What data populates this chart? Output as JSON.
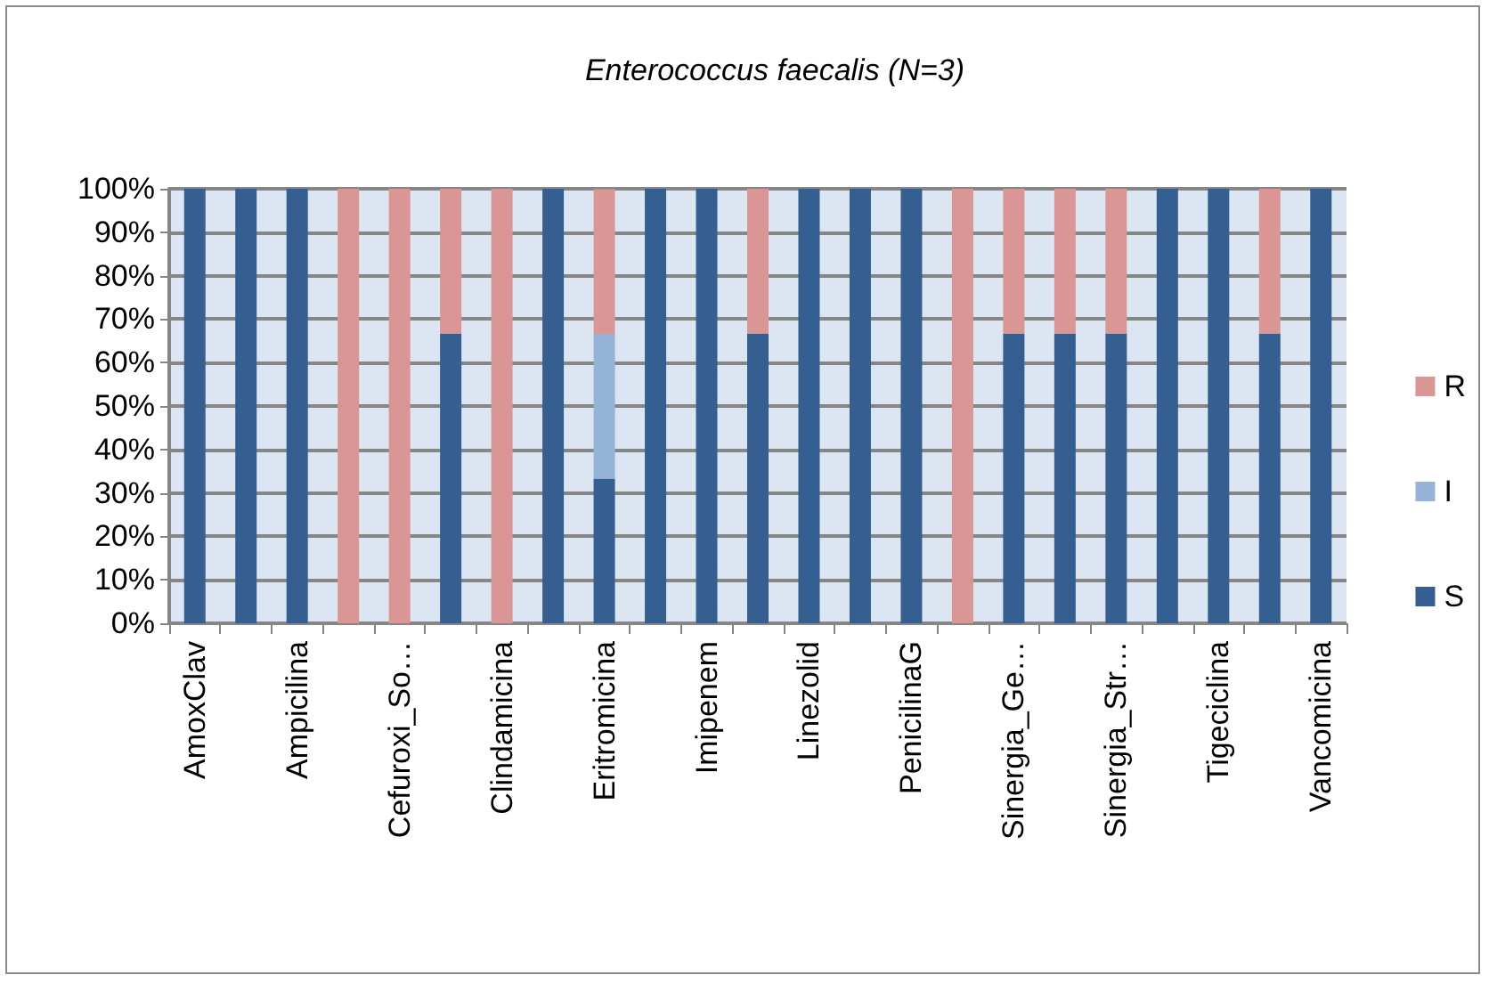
{
  "chart_data": {
    "type": "bar",
    "title": "Enterococcus faecalis (N=3)",
    "stacked": true,
    "categories": [
      "AmoxClav",
      null,
      "Ampicilina",
      null,
      "Cefuroxi_So…",
      null,
      "Clindamicina",
      null,
      "Eritromicina",
      null,
      "Imipenem",
      null,
      "Linezolid",
      null,
      "PenicilinaG",
      null,
      "Sinergia_Ge…",
      null,
      "Sinergia_Str…",
      null,
      "Tigeciclina",
      null,
      "Vancomicina"
    ],
    "series": [
      {
        "name": "S",
        "color": "#355f91",
        "values": [
          100,
          100,
          100,
          0,
          0,
          66.7,
          0,
          100,
          33.3,
          100,
          100,
          66.7,
          100,
          100,
          100,
          0,
          66.7,
          66.7,
          66.7,
          100,
          100,
          66.7,
          100
        ]
      },
      {
        "name": "I",
        "color": "#95b3d7",
        "values": [
          0,
          0,
          0,
          0,
          0,
          0,
          0,
          0,
          33.3,
          0,
          0,
          0,
          0,
          0,
          0,
          0,
          0,
          0,
          0,
          0,
          0,
          0,
          0
        ]
      },
      {
        "name": "R",
        "color": "#d99694",
        "values": [
          0,
          0,
          0,
          100,
          100,
          33.3,
          100,
          0,
          33.3,
          0,
          0,
          33.3,
          0,
          0,
          0,
          100,
          33.3,
          33.3,
          33.3,
          0,
          0,
          33.3,
          0
        ]
      }
    ],
    "ylim": [
      0,
      100
    ],
    "yticks": [
      {
        "value": 0,
        "label": "0%"
      },
      {
        "value": 10,
        "label": "10%"
      },
      {
        "value": 20,
        "label": "20%"
      },
      {
        "value": 30,
        "label": "30%"
      },
      {
        "value": 40,
        "label": "40%"
      },
      {
        "value": 50,
        "label": "50%"
      },
      {
        "value": 60,
        "label": "60%"
      },
      {
        "value": 70,
        "label": "70%"
      },
      {
        "value": 80,
        "label": "80%"
      },
      {
        "value": 90,
        "label": "90%"
      },
      {
        "value": 100,
        "label": "100%"
      }
    ],
    "grid": "y",
    "legend": "right"
  }
}
